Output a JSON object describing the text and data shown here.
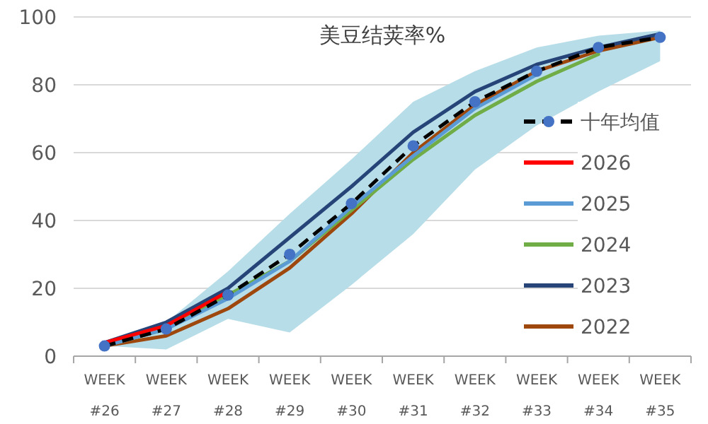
{
  "chart_data": {
    "type": "line",
    "title": "美豆结荚率%",
    "categories": [
      "WEEK #26",
      "WEEK #27",
      "WEEK #28",
      "WEEK #29",
      "WEEK #30",
      "WEEK #31",
      "WEEK #32",
      "WEEK #33",
      "WEEK #34",
      "WEEK #35"
    ],
    "series": [
      {
        "name": "十年均值",
        "color": "#000000",
        "marker": "circle",
        "colors": [
          "#4472c4",
          "#4472c4",
          "#4472c4",
          "#4472c4",
          "#4472c4",
          "#4472c4",
          "#4472c4",
          "#4472c4",
          "#4472c4",
          "#4472c4"
        ],
        "line_style": "dashed",
        "values": [
          3,
          8,
          18,
          30,
          45,
          62,
          75,
          84,
          91,
          94
        ],
        "lower": [
          3,
          2,
          11,
          7,
          21,
          36,
          55,
          68,
          78,
          87
        ],
        "upper": [
          4,
          10,
          25,
          42,
          58,
          75,
          84,
          91,
          94.5,
          96
        ]
      },
      {
        "name": "2026",
        "color": "#ff0000",
        "values": [
          4,
          9,
          19,
          null,
          null,
          null,
          null,
          null,
          null,
          null
        ]
      },
      {
        "name": "2025",
        "color": "#5b9bd5",
        "values": [
          3,
          8,
          17,
          28,
          44,
          59,
          73,
          83,
          null,
          null
        ]
      },
      {
        "name": "2024",
        "color": "#70ad47",
        "values": [
          3,
          8,
          18,
          28,
          43,
          58,
          71,
          81,
          89,
          null
        ]
      },
      {
        "name": "2023",
        "color": "#264478",
        "values": [
          4,
          10,
          20,
          35,
          50,
          66,
          78,
          86,
          91,
          95
        ]
      },
      {
        "name": "2022",
        "color": "#9e480e",
        "values": [
          3,
          6,
          14,
          26,
          42,
          60,
          74,
          84,
          90,
          94
        ]
      }
    ],
    "ylim": [
      0,
      100
    ],
    "yticks": [
      0,
      20,
      40,
      60,
      80,
      100
    ],
    "grid": "y",
    "legend": "right"
  }
}
